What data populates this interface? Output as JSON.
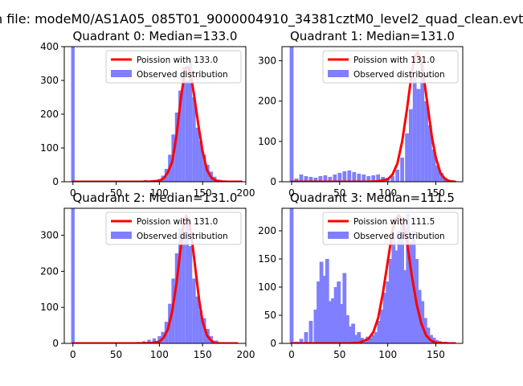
{
  "figure": {
    "title": "n file: modeM0/AS1A05_085T01_9000004910_34381cztM0_level2_quad_clean.evt"
  },
  "chart_data": [
    {
      "type": "histogram",
      "title": "Quadrant 0: Median=133.0",
      "median": 133.0,
      "xlim": [
        -10,
        200
      ],
      "ylim": [
        0,
        400
      ],
      "xticks": [
        0,
        50,
        100,
        150,
        200
      ],
      "yticks": [
        0,
        100,
        200,
        300,
        400
      ],
      "legend": {
        "position": "top-right",
        "entries": [
          "Poission with 133.0",
          "Observed distribution"
        ]
      },
      "line": {
        "name": "Poission with 133.0",
        "color": "#ff0000",
        "x": [
          0,
          40,
          80,
          90,
          100,
          105,
          110,
          115,
          120,
          125,
          130,
          133,
          136,
          140,
          145,
          150,
          155,
          160,
          165,
          170,
          180,
          195
        ],
        "y": [
          0,
          0,
          0,
          0.5,
          3,
          10,
          28,
          60,
          140,
          250,
          335,
          340,
          320,
          260,
          170,
          90,
          35,
          12,
          4,
          1,
          0,
          0
        ]
      },
      "bars": {
        "name": "Observed distribution",
        "color": "#7f7fff",
        "x": [
          0,
          78,
          84,
          90,
          96,
          100,
          104,
          108,
          112,
          116,
          120,
          124,
          128,
          132,
          136,
          140,
          144,
          148,
          152,
          156,
          160,
          164,
          170
        ],
        "y": [
          400,
          3,
          5,
          4,
          3,
          8,
          18,
          38,
          80,
          140,
          205,
          270,
          340,
          300,
          360,
          250,
          160,
          120,
          80,
          50,
          30,
          15,
          6
        ]
      }
    },
    {
      "type": "histogram",
      "title": "Quadrant 1: Median=131.0",
      "median": 131.0,
      "xlim": [
        -10,
        178
      ],
      "ylim": [
        0,
        335
      ],
      "xticks": [
        0,
        50,
        100,
        150
      ],
      "yticks": [
        0,
        100,
        200,
        300
      ],
      "legend": {
        "position": "top-right",
        "entries": [
          "Poission with 131.0",
          "Observed distribution"
        ]
      },
      "line": {
        "name": "Poission with 131.0",
        "color": "#ff0000",
        "x": [
          0,
          40,
          80,
          90,
          100,
          105,
          110,
          115,
          120,
          125,
          128,
          131,
          134,
          138,
          142,
          146,
          150,
          155,
          160,
          165,
          170
        ],
        "y": [
          0,
          0,
          0,
          1,
          6,
          18,
          45,
          100,
          180,
          270,
          310,
          320,
          305,
          250,
          180,
          110,
          60,
          20,
          6,
          1,
          0
        ]
      },
      "bars": {
        "name": "Observed distribution",
        "color": "#7f7fff",
        "x": [
          0,
          5,
          10,
          15,
          20,
          25,
          30,
          35,
          40,
          45,
          50,
          55,
          60,
          65,
          70,
          75,
          80,
          85,
          90,
          95,
          100,
          105,
          110,
          115,
          120,
          124,
          128,
          132,
          136,
          140,
          144,
          148,
          152,
          156,
          160,
          165
        ],
        "y": [
          335,
          8,
          18,
          14,
          12,
          10,
          14,
          16,
          12,
          18,
          22,
          26,
          28,
          24,
          20,
          18,
          14,
          16,
          18,
          12,
          10,
          14,
          30,
          60,
          120,
          180,
          260,
          230,
          290,
          200,
          140,
          80,
          40,
          22,
          10,
          4
        ]
      }
    },
    {
      "type": "histogram",
      "title": "Quadrant 2: Median=131.0",
      "median": 131.0,
      "xlim": [
        -10,
        200
      ],
      "ylim": [
        0,
        375
      ],
      "xticks": [
        0,
        50,
        100,
        150,
        200
      ],
      "yticks": [
        0,
        100,
        200,
        300
      ],
      "legend": {
        "position": "top-right",
        "entries": [
          "Poission with 131.0",
          "Observed distribution"
        ]
      },
      "line": {
        "name": "Poission with 131.0",
        "color": "#ff0000",
        "x": [
          0,
          40,
          80,
          90,
          100,
          105,
          110,
          115,
          120,
          125,
          128,
          131,
          134,
          138,
          142,
          146,
          150,
          155,
          160,
          165,
          170,
          190
        ],
        "y": [
          0,
          0,
          0,
          1,
          5,
          16,
          40,
          90,
          170,
          270,
          330,
          355,
          340,
          280,
          200,
          120,
          60,
          22,
          7,
          1,
          0,
          0
        ]
      },
      "bars": {
        "name": "Observed distribution",
        "color": "#7f7fff",
        "x": [
          0,
          70,
          76,
          82,
          88,
          94,
          100,
          104,
          108,
          112,
          116,
          120,
          124,
          128,
          132,
          136,
          140,
          144,
          148,
          152,
          156,
          160,
          166
        ],
        "y": [
          375,
          2,
          4,
          6,
          10,
          14,
          20,
          32,
          60,
          110,
          180,
          250,
          320,
          300,
          350,
          270,
          180,
          130,
          90,
          70,
          40,
          20,
          8
        ]
      }
    },
    {
      "type": "histogram",
      "title": "Quadrant 3: Median=111.5",
      "median": 111.5,
      "xlim": [
        -10,
        178
      ],
      "ylim": [
        0,
        240
      ],
      "xticks": [
        0,
        50,
        100,
        150
      ],
      "yticks": [
        0,
        50,
        100,
        150,
        200
      ],
      "legend": {
        "position": "top-right",
        "entries": [
          "Poission with 111.5",
          "Observed distribution"
        ]
      },
      "line": {
        "name": "Poission with 111.5",
        "color": "#ff0000",
        "x": [
          0,
          40,
          60,
          70,
          80,
          85,
          90,
          95,
          100,
          105,
          108,
          111.5,
          115,
          120,
          125,
          130,
          135,
          140,
          145,
          150,
          160,
          170
        ],
        "y": [
          0,
          0,
          0,
          1,
          8,
          20,
          45,
          90,
          145,
          200,
          220,
          228,
          220,
          180,
          120,
          70,
          35,
          14,
          5,
          1,
          0,
          0
        ]
      },
      "bars": {
        "name": "Observed distribution",
        "color": "#7f7fff",
        "x": [
          0,
          5,
          10,
          15,
          20,
          25,
          28,
          31,
          34,
          37,
          40,
          43,
          46,
          49,
          52,
          55,
          58,
          61,
          64,
          67,
          70,
          73,
          76,
          79,
          82,
          85,
          88,
          91,
          94,
          97,
          100,
          103,
          106,
          109,
          112,
          115,
          118,
          121,
          124,
          127,
          130,
          133,
          136,
          139,
          142,
          145,
          148,
          151,
          154,
          160,
          165
        ],
        "y": [
          240,
          3,
          8,
          20,
          40,
          60,
          110,
          145,
          120,
          150,
          75,
          80,
          100,
          110,
          70,
          125,
          50,
          30,
          35,
          15,
          20,
          10,
          6,
          12,
          10,
          15,
          20,
          40,
          60,
          90,
          110,
          150,
          195,
          165,
          200,
          220,
          130,
          230,
          180,
          200,
          150,
          95,
          75,
          45,
          28,
          15,
          10,
          6,
          4,
          3,
          2
        ]
      }
    }
  ]
}
